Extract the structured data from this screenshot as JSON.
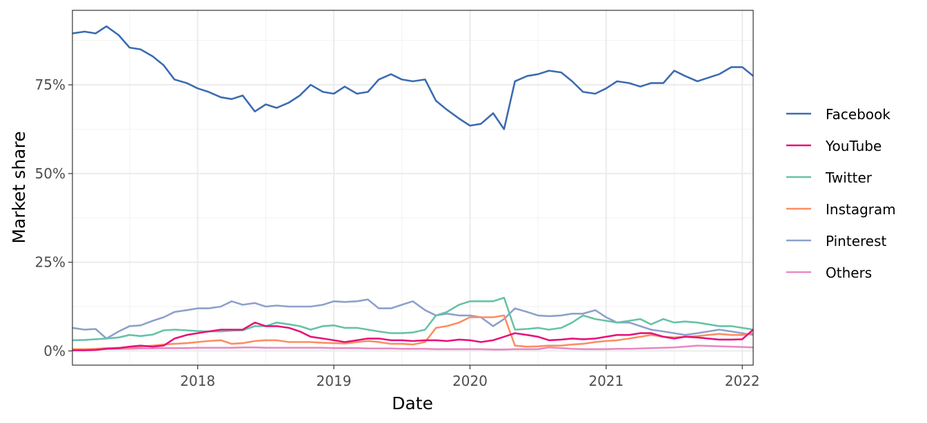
{
  "chart_data": {
    "type": "line",
    "xlabel": "Date",
    "ylabel": "Market share",
    "x_ticks": [
      2018,
      2019,
      2020,
      2021,
      2022
    ],
    "x_tick_labels": [
      "2018",
      "2019",
      "2020",
      "2021",
      "2022"
    ],
    "y_ticks": [
      0,
      25,
      50,
      75
    ],
    "y_tick_labels": [
      "0%",
      "25%",
      "50%",
      "75%"
    ],
    "xlim": [
      2017.08,
      2022.08
    ],
    "ylim": [
      -4,
      96
    ],
    "x": [
      2017.08,
      2017.17,
      2017.25,
      2017.33,
      2017.42,
      2017.5,
      2017.58,
      2017.67,
      2017.75,
      2017.83,
      2017.92,
      2018,
      2018.08,
      2018.17,
      2018.25,
      2018.33,
      2018.42,
      2018.5,
      2018.58,
      2018.67,
      2018.75,
      2018.83,
      2018.92,
      2019,
      2019.08,
      2019.17,
      2019.25,
      2019.33,
      2019.42,
      2019.5,
      2019.58,
      2019.67,
      2019.75,
      2019.83,
      2019.92,
      2020,
      2020.08,
      2020.17,
      2020.25,
      2020.33,
      2020.42,
      2020.5,
      2020.58,
      2020.67,
      2020.75,
      2020.83,
      2020.92,
      2021,
      2021.08,
      2021.17,
      2021.25,
      2021.33,
      2021.42,
      2021.5,
      2021.58,
      2021.67,
      2021.75,
      2021.83,
      2021.92,
      2022,
      2022.08
    ],
    "grid": true,
    "legend_position": "right",
    "series": [
      {
        "name": "Facebook",
        "color": "#3b6bb0",
        "values": [
          89.5,
          90,
          89.5,
          91.5,
          89,
          85.5,
          85,
          83,
          80.5,
          76.5,
          75.5,
          74,
          73,
          71.5,
          71,
          72,
          67.5,
          69.5,
          68.5,
          70,
          72,
          75,
          73,
          72.5,
          74.5,
          72.5,
          73,
          76.5,
          78,
          76.5,
          76,
          76.5,
          70.5,
          68,
          65.5,
          63.5,
          64,
          67,
          62.5,
          76,
          77.5,
          78,
          79,
          78.5,
          76,
          73,
          72.5,
          74,
          76,
          75.5,
          74.5,
          75.5,
          75.5,
          79,
          77.5,
          76,
          77,
          78,
          80,
          80,
          77.5
        ]
      },
      {
        "name": "YouTube",
        "color": "#e7117a",
        "values": [
          0.2,
          0.2,
          0.3,
          0.6,
          0.8,
          1.2,
          1.5,
          1.2,
          1.5,
          3.5,
          4.5,
          5,
          5.5,
          6,
          6,
          6,
          8,
          7,
          7,
          6.5,
          5.5,
          4,
          3.5,
          3,
          2.5,
          3,
          3.5,
          3.5,
          3,
          3,
          2.8,
          3,
          3,
          2.8,
          3.2,
          3,
          2.5,
          3,
          4,
          5,
          4.5,
          4,
          3,
          3.2,
          3.5,
          3.3,
          3.5,
          4,
          4.5,
          4.5,
          5,
          5,
          4,
          3.5,
          4,
          3.8,
          3.5,
          3.2,
          3.2,
          3.3,
          6
        ]
      },
      {
        "name": "Twitter",
        "color": "#66c2a5",
        "values": [
          3,
          3.1,
          3.3,
          3.5,
          3.8,
          4.5,
          4.2,
          4.6,
          5.8,
          6,
          5.8,
          5.6,
          5.5,
          5.5,
          5.7,
          5.8,
          7,
          7,
          8,
          7.5,
          7,
          6,
          7,
          7.2,
          6.5,
          6.5,
          6,
          5.5,
          5,
          5,
          5.2,
          6,
          10,
          11,
          13,
          14,
          14,
          14,
          15,
          6,
          6.2,
          6.5,
          6,
          6.5,
          8,
          10,
          9,
          8.5,
          8,
          8.5,
          9,
          7.5,
          9,
          8,
          8.3,
          8,
          7.5,
          7,
          7,
          6.5,
          6
        ]
      },
      {
        "name": "Instagram",
        "color": "#fc8d62",
        "values": [
          0.5,
          0.5,
          0.6,
          0.8,
          0.9,
          1,
          1.2,
          1.5,
          1.8,
          2,
          2.2,
          2.5,
          2.8,
          3,
          2,
          2.2,
          2.8,
          3,
          3,
          2.5,
          2.5,
          2.5,
          2.3,
          2.2,
          2.1,
          2.5,
          2.8,
          2.5,
          2,
          2,
          1.8,
          2.5,
          6.5,
          7,
          8,
          9.5,
          9.5,
          9.5,
          10,
          1.5,
          1.2,
          1.3,
          1.5,
          1.5,
          1.8,
          2,
          2.5,
          2.8,
          3,
          3.5,
          4,
          4.5,
          4,
          3.8,
          4,
          4.2,
          4.5,
          4.8,
          4.5,
          4.5,
          5
        ]
      },
      {
        "name": "Pinterest",
        "color": "#8da0cb",
        "values": [
          6.5,
          6,
          6.2,
          3.5,
          5.5,
          7,
          7.2,
          8.5,
          9.5,
          11,
          11.5,
          12,
          12,
          12.5,
          14,
          13,
          13.5,
          12.5,
          12.8,
          12.5,
          12.5,
          12.5,
          13,
          14,
          13.8,
          14,
          14.5,
          12,
          12,
          13,
          14,
          11.5,
          10,
          10.5,
          10,
          10,
          9.5,
          7,
          9,
          12,
          11,
          10,
          9.8,
          10,
          10.5,
          10.5,
          11.5,
          9.5,
          8,
          8,
          7,
          6,
          5.5,
          5,
          4.5,
          5,
          5.5,
          6,
          5.5,
          5,
          4.5
        ]
      },
      {
        "name": "Others",
        "color": "#e78ac3",
        "values": [
          0.5,
          0.5,
          0.5,
          0.6,
          0.6,
          0.6,
          0.7,
          0.7,
          0.8,
          0.8,
          0.8,
          0.9,
          0.9,
          0.9,
          0.9,
          1,
          1,
          0.9,
          0.9,
          0.9,
          0.9,
          0.9,
          0.9,
          0.8,
          0.8,
          0.8,
          0.7,
          0.7,
          0.7,
          0.6,
          0.6,
          0.6,
          0.5,
          0.5,
          0.5,
          0.5,
          0.5,
          0.4,
          0.4,
          0.5,
          0.5,
          0.5,
          1,
          0.8,
          0.6,
          0.5,
          0.5,
          0.5,
          0.6,
          0.6,
          0.7,
          0.8,
          0.9,
          1,
          1.2,
          1.5,
          1.4,
          1.3,
          1.2,
          1.1,
          1
        ]
      }
    ]
  }
}
